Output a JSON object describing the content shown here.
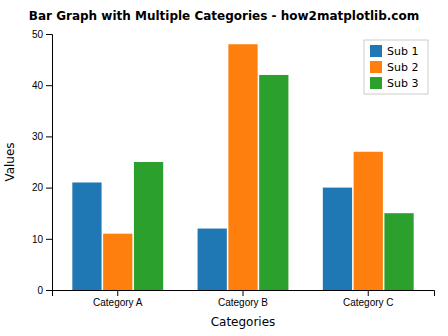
{
  "chart_data": {
    "type": "bar",
    "title": "Bar Graph with Multiple Categories - how2matplotlib.com",
    "xlabel": "Categories",
    "ylabel": "Values",
    "categories": [
      "Category A",
      "Category B",
      "Category C"
    ],
    "series": [
      {
        "name": "Sub 1",
        "color": "#1f77b4",
        "values": [
          21,
          12,
          20
        ]
      },
      {
        "name": "Sub 2",
        "color": "#ff7f0e",
        "values": [
          11,
          48,
          27
        ]
      },
      {
        "name": "Sub 3",
        "color": "#2ca02c",
        "values": [
          25,
          42,
          15
        ]
      }
    ],
    "ylim": [
      0,
      50
    ],
    "yticks": [
      0,
      10,
      20,
      30,
      40,
      50
    ],
    "grid": false,
    "legend": "upper right"
  }
}
